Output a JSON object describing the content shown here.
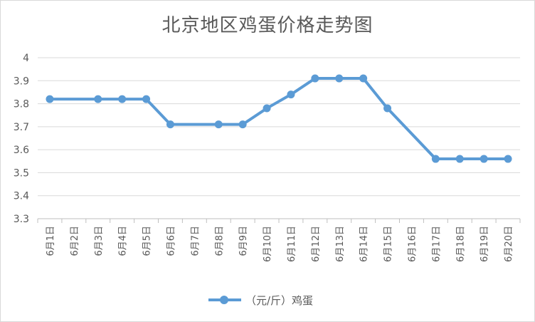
{
  "chart_data": {
    "type": "line",
    "title": "北京地区鸡蛋价格走势图",
    "xlabel": "",
    "ylabel": "",
    "ylim": [
      3.3,
      4
    ],
    "yticks": [
      "3.3",
      "3.4",
      "3.5",
      "3.6",
      "3.7",
      "3.8",
      "3.9",
      "4"
    ],
    "grid": true,
    "legend_position": "bottom",
    "categories": [
      "6月1日",
      "6月2日",
      "6月3日",
      "6月4日",
      "6月5日",
      "6月6日",
      "6月7日",
      "6月8日",
      "6月9日",
      "6月10日",
      "6月11日",
      "6月12日",
      "6月13日",
      "6月14日",
      "6月15日",
      "6月16日",
      "6月17日",
      "6月18日",
      "6月19日",
      "6月20日"
    ],
    "series": [
      {
        "name": "（元/斤）鸡蛋",
        "color": "#5b9bd5",
        "values": [
          3.82,
          null,
          3.82,
          3.82,
          3.82,
          3.71,
          null,
          3.71,
          3.71,
          3.78,
          3.84,
          3.91,
          3.91,
          3.91,
          3.78,
          null,
          3.56,
          3.56,
          3.56,
          3.56
        ]
      }
    ]
  }
}
